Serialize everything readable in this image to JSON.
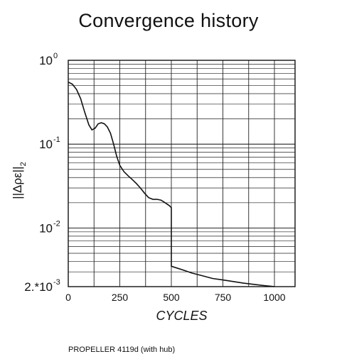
{
  "title": "Convergence history",
  "caption": "PROPELLER 4119d (with hub)",
  "chart_data": {
    "type": "line",
    "title": "Convergence history",
    "xlabel": "CYCLES",
    "ylabel": "||Δρε||₂",
    "ylabel_parts": {
      "main": "||Δρε||",
      "sub": "2"
    },
    "x_scale": "linear",
    "y_scale": "log",
    "xlim": [
      0,
      1100
    ],
    "ylim": [
      0.002,
      1.0
    ],
    "x_ticks": [
      0,
      250,
      500,
      750,
      1000
    ],
    "x_tick_labels": [
      "0",
      "250",
      "500",
      "750",
      "1000"
    ],
    "y_ticks": [
      {
        "value": 1.0,
        "base": "10",
        "exp": "0"
      },
      {
        "value": 0.1,
        "base": "10",
        "exp": "-1"
      },
      {
        "value": 0.01,
        "base": "10",
        "exp": "-2"
      },
      {
        "value": 0.002,
        "text": "2.*10",
        "exp": "-3"
      }
    ],
    "grid": true,
    "series": [
      {
        "values": [
          [
            0,
            0.55
          ],
          [
            20,
            0.52
          ],
          [
            40,
            0.45
          ],
          [
            60,
            0.35
          ],
          [
            80,
            0.24
          ],
          [
            100,
            0.17
          ],
          [
            115,
            0.148
          ],
          [
            130,
            0.155
          ],
          [
            145,
            0.175
          ],
          [
            160,
            0.18
          ],
          [
            175,
            0.175
          ],
          [
            190,
            0.16
          ],
          [
            205,
            0.135
          ],
          [
            220,
            0.1
          ],
          [
            235,
            0.072
          ],
          [
            250,
            0.056
          ],
          [
            270,
            0.047
          ],
          [
            290,
            0.042
          ],
          [
            310,
            0.038
          ],
          [
            330,
            0.034
          ],
          [
            350,
            0.03
          ],
          [
            370,
            0.026
          ],
          [
            390,
            0.023
          ],
          [
            410,
            0.022
          ],
          [
            430,
            0.022
          ],
          [
            450,
            0.0215
          ],
          [
            470,
            0.02
          ],
          [
            490,
            0.0185
          ],
          [
            500,
            0.0175
          ],
          [
            500,
            0.0035
          ],
          [
            550,
            0.0032
          ],
          [
            600,
            0.0029
          ],
          [
            650,
            0.0027
          ],
          [
            700,
            0.0025
          ],
          [
            750,
            0.0024
          ],
          [
            800,
            0.0023
          ],
          [
            850,
            0.0022
          ],
          [
            900,
            0.00213
          ],
          [
            950,
            0.00206
          ],
          [
            1000,
            0.002
          ]
        ]
      }
    ]
  }
}
